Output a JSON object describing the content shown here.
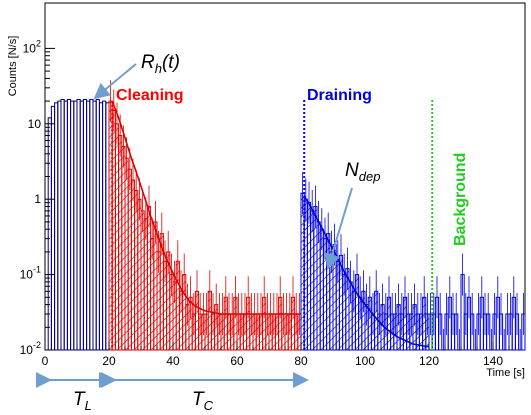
{
  "chart_data": {
    "type": "histogram",
    "title": "",
    "xlabel": "Time [s]",
    "ylabel": "Counts [N/s]",
    "xlim": [
      0,
      150
    ],
    "ylim": [
      0.01,
      400
    ],
    "yscale": "log",
    "x_ticks": [
      "0",
      "20",
      "40",
      "60",
      "80",
      "100",
      "120",
      "140"
    ],
    "y_ticks": [
      "10^{-2}",
      "10^{-1}",
      "1",
      "10",
      "10^{2}"
    ],
    "regions": [
      {
        "name": "Cleaning",
        "start": 21,
        "color": "#ff0000"
      },
      {
        "name": "Draining",
        "start": 81,
        "color": "#0000ff"
      },
      {
        "name": "Background",
        "start": 121,
        "color": "#00dd00"
      }
    ],
    "annotations": [
      {
        "label": "R",
        "sub": "h",
        "suffix": "(t)",
        "target": "loading plateau"
      },
      {
        "label": "N",
        "sub": "dep",
        "suffix": "",
        "target": "draining peak"
      }
    ],
    "intervals": [
      {
        "label": "T",
        "sub": "L",
        "from": 0,
        "to": 20
      },
      {
        "label": "T",
        "sub": "C",
        "from": 20,
        "to": 80
      }
    ],
    "series": [
      {
        "name": "loading",
        "color": "#000080",
        "fill": "none",
        "x": [
          1,
          2,
          3,
          4,
          5,
          6,
          7,
          8,
          9,
          10,
          11,
          12,
          13,
          14,
          15,
          16,
          17,
          18,
          19,
          20
        ],
        "y": [
          0.01,
          12,
          17,
          19,
          20,
          21,
          20,
          21,
          20,
          20,
          21,
          20,
          21,
          20,
          21,
          20,
          21,
          19,
          20,
          19
        ]
      },
      {
        "name": "cleaning",
        "color": "#e00000",
        "fill": "hatch",
        "x": [
          21,
          22,
          23,
          24,
          25,
          26,
          27,
          28,
          29,
          30,
          31,
          32,
          33,
          34,
          35,
          36,
          37,
          38,
          39,
          40,
          41,
          42,
          43,
          44,
          45,
          46,
          47,
          48,
          49,
          50,
          51,
          52,
          53,
          54,
          55,
          56,
          57,
          58,
          59,
          60,
          61,
          62,
          63,
          64,
          65,
          66,
          67,
          68,
          69,
          70,
          71,
          72,
          73,
          74,
          75,
          76,
          77,
          78,
          79,
          80
        ],
        "y": [
          20,
          15,
          10,
          7,
          5,
          3.5,
          2.5,
          1.8,
          1.3,
          1.0,
          0.7,
          0.55,
          0.8,
          0.3,
          0.5,
          0.2,
          0.35,
          0.15,
          0.2,
          0.1,
          0.08,
          0.15,
          0.06,
          0.1,
          0.04,
          0.05,
          0.03,
          0.06,
          0.03,
          0.03,
          0.03,
          0.06,
          0.03,
          0.04,
          0.03,
          0.03,
          0.05,
          0.03,
          0.03,
          0.05,
          0.03,
          0.03,
          0.03,
          0.05,
          0.03,
          0.03,
          0.03,
          0.03,
          0.05,
          0.03,
          0.03,
          0.03,
          0.03,
          0.05,
          0.03,
          0.03,
          0.03,
          0.05,
          0.03,
          0.03
        ]
      },
      {
        "name": "cleaning fit",
        "color": "#e00000",
        "fill": "none",
        "style": "smooth",
        "x": [
          21,
          23,
          25,
          27,
          29,
          31,
          33,
          35,
          37,
          39,
          41,
          43,
          45,
          47,
          50,
          55,
          60,
          65,
          70,
          75,
          80
        ],
        "y": [
          20,
          12,
          6.5,
          3.5,
          2.0,
          1.1,
          0.6,
          0.35,
          0.2,
          0.13,
          0.085,
          0.06,
          0.045,
          0.038,
          0.033,
          0.03,
          0.03,
          0.03,
          0.03,
          0.03,
          0.03
        ]
      },
      {
        "name": "draining",
        "color": "#0000dd",
        "fill": "hatch",
        "x": [
          81,
          82,
          83,
          84,
          85,
          86,
          87,
          88,
          89,
          90,
          91,
          92,
          93,
          94,
          95,
          96,
          97,
          98,
          99,
          100,
          101,
          102,
          103,
          104,
          105,
          106,
          107,
          108,
          109,
          110,
          111,
          112,
          113,
          114,
          115,
          116,
          117,
          118,
          119,
          120
        ],
        "y": [
          1.2,
          1.0,
          0.9,
          0.7,
          0.8,
          0.5,
          0.4,
          0.3,
          0.35,
          0.2,
          0.25,
          0.15,
          0.18,
          0.1,
          0.12,
          0.08,
          0.06,
          0.1,
          0.05,
          0.06,
          0.04,
          0.05,
          0.03,
          0.06,
          0.03,
          0.04,
          0.03,
          0.05,
          0.03,
          0.03,
          0.04,
          0.03,
          0.05,
          0.03,
          0.03,
          0.04,
          0.03,
          0.03,
          0.05,
          0.03
        ]
      },
      {
        "name": "draining fit",
        "color": "#0000dd",
        "fill": "none",
        "style": "smooth",
        "x": [
          81,
          83,
          85,
          87,
          89,
          91,
          93,
          95,
          97,
          100,
          103,
          106,
          110,
          115,
          120
        ],
        "y": [
          1.1,
          0.8,
          0.55,
          0.38,
          0.26,
          0.18,
          0.12,
          0.085,
          0.06,
          0.04,
          0.028,
          0.02,
          0.015,
          0.012,
          0.011
        ]
      },
      {
        "name": "background",
        "color": "#0000dd",
        "fill": "none",
        "x": [
          121,
          122,
          123,
          124,
          125,
          126,
          127,
          128,
          129,
          130,
          131,
          132,
          133,
          134,
          135,
          136,
          137,
          138,
          139,
          140,
          141,
          142,
          143,
          144,
          145,
          146,
          147,
          148,
          149,
          150
        ],
        "y": [
          0.03,
          0.03,
          0.05,
          0.03,
          0.01,
          0.03,
          0.05,
          0.03,
          0.03,
          0.01,
          0.1,
          0.03,
          0.05,
          0.03,
          0.01,
          0.03,
          0.05,
          0.03,
          0.03,
          0.01,
          0.03,
          0.05,
          0.03,
          0.01,
          0.03,
          0.03,
          0.05,
          0.03,
          0.01,
          0.03
        ]
      }
    ]
  }
}
